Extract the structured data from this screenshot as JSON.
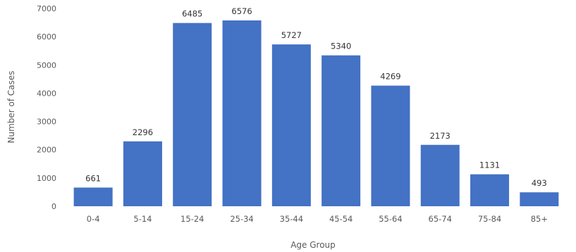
{
  "chart_data": {
    "type": "bar",
    "title": "",
    "xlabel": "Age Group",
    "ylabel": "Number of Cases",
    "categories": [
      "0-4",
      "5-14",
      "15-24",
      "25-34",
      "35-44",
      "45-54",
      "55-64",
      "65-74",
      "75-84",
      "85+"
    ],
    "values": [
      661,
      2296,
      6485,
      6576,
      5727,
      5340,
      4269,
      2173,
      1131,
      493
    ],
    "data_labels": [
      "661",
      "2296",
      "6485",
      "6576",
      "5727",
      "5340",
      "4269",
      "2173",
      "1131",
      "493"
    ],
    "ylim": [
      0,
      7000
    ],
    "yticks": [
      0,
      1000,
      2000,
      3000,
      4000,
      5000,
      6000,
      7000
    ],
    "ytick_labels": [
      "0",
      "1000",
      "2000",
      "3000",
      "4000",
      "5000",
      "6000",
      "7000"
    ],
    "grid": false,
    "legend": "none",
    "colors": {
      "bar": "#4472C4",
      "text": "#595959",
      "background": "#ffffff"
    }
  }
}
